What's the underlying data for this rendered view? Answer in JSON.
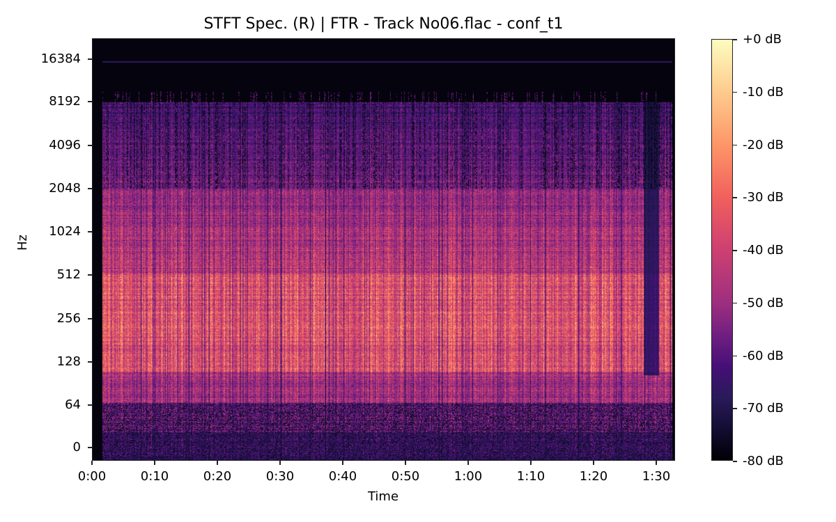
{
  "chart_data": {
    "type": "heatmap",
    "title": "STFT Spec. (R) | FTR - Track No06.flac - conf_t1",
    "xlabel": "Time",
    "ylabel": "Hz",
    "x_ticks": [
      "0:00",
      "0:10",
      "0:20",
      "0:30",
      "0:40",
      "0:50",
      "1:00",
      "1:10",
      "1:20",
      "1:30"
    ],
    "x_tick_seconds": [
      0,
      10,
      20,
      30,
      40,
      50,
      60,
      70,
      80,
      90
    ],
    "xlim_seconds": [
      0,
      93
    ],
    "y_scale": "log2",
    "y_ticks": [
      "16384",
      "8192",
      "4096",
      "2048",
      "1024",
      "512",
      "256",
      "128",
      "64",
      "0"
    ],
    "y_tick_values": [
      16384,
      8192,
      4096,
      2048,
      1024,
      512,
      256,
      128,
      64,
      0
    ],
    "colormap": "magma",
    "colorbar": {
      "ticks": [
        "+0 dB",
        "-10 dB",
        "-20 dB",
        "-30 dB",
        "-40 dB",
        "-50 dB",
        "-60 dB",
        "-70 dB",
        "-80 dB"
      ],
      "values": [
        0,
        -10,
        -20,
        -30,
        -40,
        -50,
        -60,
        -70,
        -80
      ],
      "range": [
        -80,
        0
      ]
    },
    "description": {
      "signal_start_seconds": 1.5,
      "signal_end_seconds": 92.5,
      "high_freq_cutoff_hz": 8000,
      "faint_line_hz": 16000,
      "brightest_band_hz": [
        100,
        512
      ],
      "level_below_64hz_db": -60,
      "level_64_128hz_db": -40,
      "level_128_512hz_db": -20,
      "level_512_2048hz_db": -35,
      "level_2048_8192hz_db": -55,
      "quiet_gap_seconds": [
        88,
        90
      ]
    }
  }
}
